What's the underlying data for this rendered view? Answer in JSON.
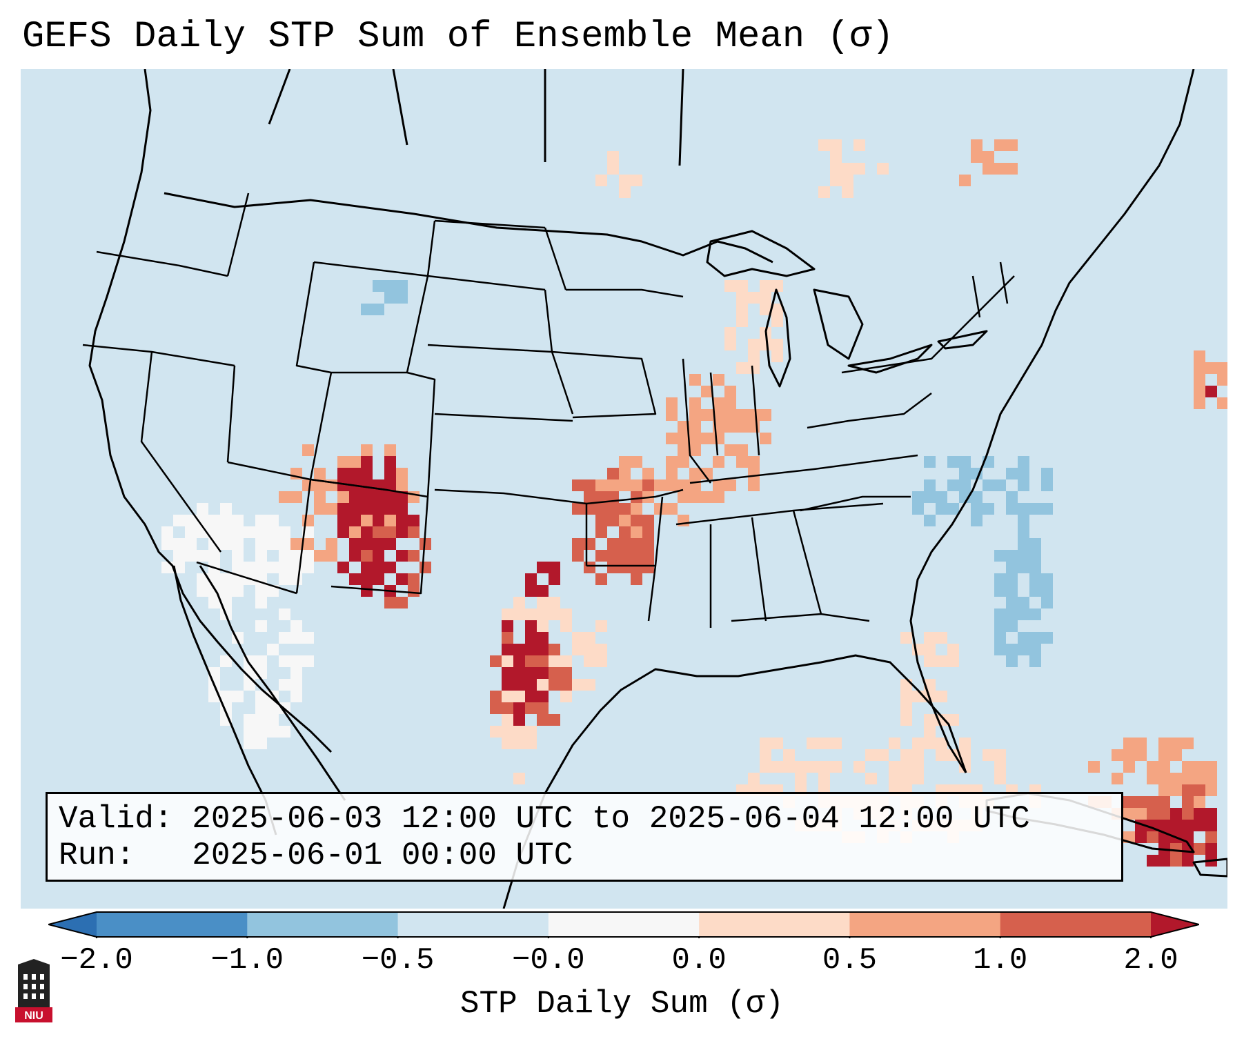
{
  "title": "GEFS Daily STP Sum of Ensemble Mean (σ)",
  "info": {
    "valid_label": "Valid:",
    "valid_value": "2025-06-03 12:00 UTC to 2025-06-04 12:00 UTC",
    "run_label": "Run:",
    "run_value": "2025-06-01 00:00 UTC"
  },
  "colorbar": {
    "label": "STP Daily Sum (σ)",
    "tick_labels": [
      "−2.0",
      "−1.0",
      "−0.5",
      "−0.0",
      "0.0",
      "0.5",
      "1.0",
      "2.0"
    ],
    "bins": [
      {
        "range": "< -2.0",
        "color": "#2c6fb2"
      },
      {
        "range": "-2.0 to -1.0",
        "color": "#4a8fc6"
      },
      {
        "range": "-1.0 to -0.5",
        "color": "#92c4de"
      },
      {
        "range": "-0.5 to -0.0",
        "color": "#d1e5f0"
      },
      {
        "range": "-0.0 to 0.0",
        "color": "#f7f7f7"
      },
      {
        "range": "0.0 to 0.5",
        "color": "#fddbc7"
      },
      {
        "range": "0.5 to 1.0",
        "color": "#f4a582"
      },
      {
        "range": "1.0 to 2.0",
        "color": "#d6604d"
      },
      {
        "range": "> 2.0",
        "color": "#b2182b"
      }
    ]
  },
  "map": {
    "background_color": "#d1e5f0",
    "regions": [
      {
        "name": "Four Corners / Utah–Colorado–Arizona core",
        "level": "> 2.0"
      },
      {
        "name": "New Mexico / West Texas",
        "level": "> 2.0"
      },
      {
        "name": "Kansas–Oklahoma corridor",
        "level": "1.0 to 2.0"
      },
      {
        "name": "Iowa–Missouri",
        "level": "0.5 to 1.0"
      },
      {
        "name": "Wisconsin / Upper Michigan",
        "level": "0.0 to 0.5"
      },
      {
        "name": "Southern Ontario / Quebec",
        "level": "0.5 to 1.0"
      },
      {
        "name": "Bahamas / Cuba",
        "level": "> 2.0"
      },
      {
        "name": "Southern California / Baja",
        "level": "-0.0 to 0.0"
      },
      {
        "name": "Ohio Valley / Appalachians",
        "level": "-1.0 to -0.5"
      },
      {
        "name": "Southeast US coast",
        "level": "-1.0 to -0.5"
      }
    ]
  },
  "logo": {
    "text": "NIU",
    "color": "#c8102e"
  }
}
